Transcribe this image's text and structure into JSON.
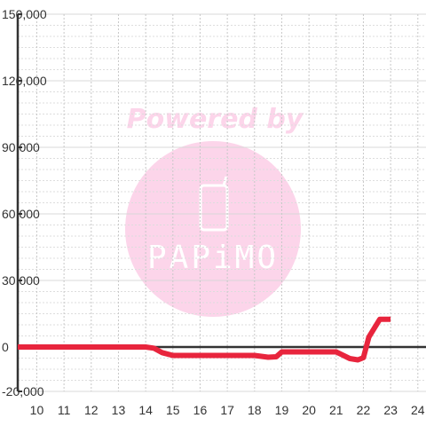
{
  "watermark": {
    "line1": "Powered by",
    "logo": "PAPiMO",
    "color": "#fcd5ea",
    "icon": "phone-icon"
  },
  "chart_data": {
    "type": "line",
    "title": "",
    "xlabel": "",
    "ylabel": "",
    "xlim": [
      9.3,
      24.3
    ],
    "ylim": [
      -20000,
      150000
    ],
    "x_ticks": [
      10,
      11,
      12,
      13,
      14,
      15,
      16,
      17,
      18,
      19,
      20,
      21,
      22,
      23,
      24
    ],
    "x_tick_labels": [
      "10",
      "11",
      "12",
      "13",
      "14",
      "15",
      "16",
      "17",
      "18",
      "19",
      "20",
      "21",
      "22",
      "23",
      "24"
    ],
    "y_ticks": [
      -20000,
      0,
      30000,
      60000,
      90000,
      120000,
      150000
    ],
    "y_tick_labels": [
      "-20,000",
      "0",
      "30,000",
      "60,000",
      "90,000",
      "120,000",
      "150,000"
    ],
    "grid": true,
    "zero_line": true,
    "series": [
      {
        "color": "#e8253d",
        "x": [
          9.3,
          10,
          11,
          12,
          13,
          14,
          14.3,
          14.6,
          15,
          16,
          17,
          18,
          18.5,
          18.8,
          19,
          20,
          21,
          21.5,
          21.8,
          22,
          22.2,
          22.6,
          22.8,
          23
        ],
        "y": [
          0,
          0,
          0,
          0,
          0,
          0,
          -500,
          -2500,
          -3800,
          -3800,
          -3800,
          -3800,
          -4600,
          -4400,
          -2200,
          -2200,
          -2200,
          -5200,
          -5800,
          -4800,
          4500,
          12500,
          12500,
          12500
        ]
      }
    ]
  }
}
